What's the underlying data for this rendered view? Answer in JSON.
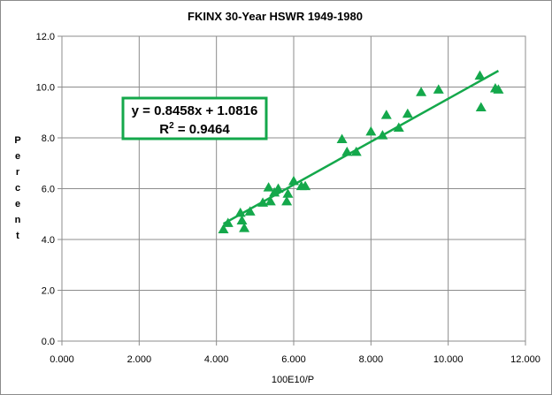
{
  "chart_data": {
    "type": "scatter",
    "title": "FKINX 30-Year HSWR 1949-1980",
    "xlabel": "100E10/P",
    "ylabel": "Percent",
    "xlim": [
      0,
      12
    ],
    "ylim": [
      0,
      12
    ],
    "x_ticks": [
      "0.000",
      "2.000",
      "4.000",
      "6.000",
      "8.000",
      "10.000",
      "12.000"
    ],
    "y_ticks": [
      "0.0",
      "2.0",
      "4.0",
      "6.0",
      "8.0",
      "10.0",
      "12.0"
    ],
    "grid": true,
    "marker_color": "#14a84b",
    "series": [
      {
        "points": [
          [
            4.18,
            4.4
          ],
          [
            4.3,
            4.65
          ],
          [
            4.62,
            5.05
          ],
          [
            4.66,
            4.75
          ],
          [
            4.72,
            4.45
          ],
          [
            4.87,
            5.1
          ],
          [
            5.2,
            5.45
          ],
          [
            5.35,
            6.05
          ],
          [
            5.4,
            5.5
          ],
          [
            5.5,
            5.85
          ],
          [
            5.6,
            6.0
          ],
          [
            5.82,
            5.5
          ],
          [
            5.85,
            5.8
          ],
          [
            6.0,
            6.3
          ],
          [
            6.2,
            6.1
          ],
          [
            6.3,
            6.1
          ],
          [
            7.25,
            7.95
          ],
          [
            7.38,
            7.45
          ],
          [
            7.62,
            7.45
          ],
          [
            8.0,
            8.25
          ],
          [
            8.3,
            8.1
          ],
          [
            8.4,
            8.9
          ],
          [
            8.72,
            8.4
          ],
          [
            8.95,
            8.95
          ],
          [
            9.3,
            9.8
          ],
          [
            9.75,
            9.9
          ],
          [
            10.82,
            10.45
          ],
          [
            10.85,
            9.2
          ],
          [
            11.22,
            9.95
          ],
          [
            11.3,
            9.9
          ]
        ]
      }
    ],
    "trendline": {
      "slope": 0.8458,
      "intercept": 1.0816,
      "x_range": [
        4.18,
        11.3
      ],
      "equation_label": "y = 0.8458x + 1.0816",
      "r2_prefix": "R",
      "r2_exponent": "2",
      "r2_value": " = 0.9464"
    }
  }
}
